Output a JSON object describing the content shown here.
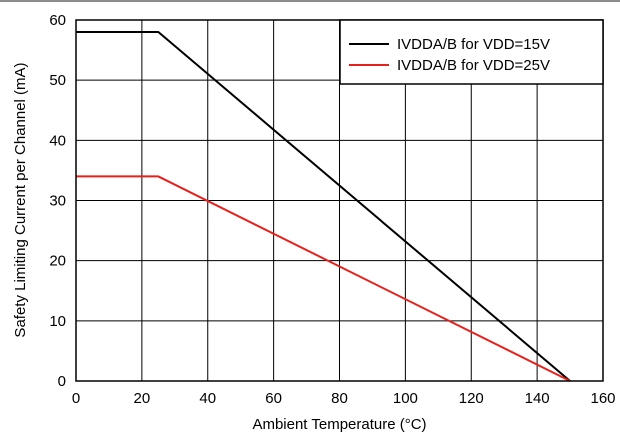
{
  "chart_data": {
    "type": "line",
    "xlabel": "Ambient Temperature (°C)",
    "ylabel": "Safety Limiting Current per Channel (mA)",
    "xlim": [
      0,
      160
    ],
    "ylim": [
      0,
      60
    ],
    "x_ticks": [
      "0",
      "20",
      "40",
      "60",
      "80",
      "100",
      "120",
      "140",
      "160"
    ],
    "y_ticks": [
      "0",
      "10",
      "20",
      "30",
      "40",
      "50",
      "60"
    ],
    "x_tick_values": [
      0,
      20,
      40,
      60,
      80,
      100,
      120,
      140,
      160
    ],
    "y_tick_values": [
      0,
      10,
      20,
      30,
      40,
      50,
      60
    ],
    "grid": true,
    "legend_position": "top-right",
    "series": [
      {
        "name": "IVDDA/B for VDD=15V",
        "color": "#000000",
        "x": [
          0,
          25,
          150
        ],
        "y": [
          58,
          58,
          0
        ]
      },
      {
        "name": "IVDDA/B for VDD=25V",
        "color": "#e8201c",
        "x": [
          0,
          25,
          150
        ],
        "y": [
          34,
          34,
          0
        ]
      }
    ]
  }
}
